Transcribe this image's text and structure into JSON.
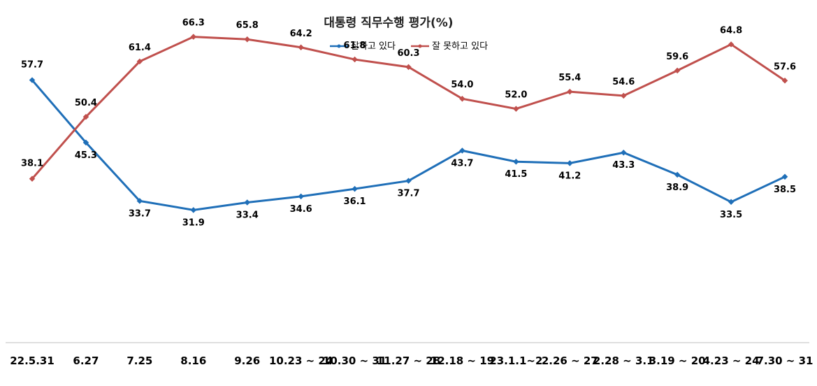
{
  "chart_data": {
    "type": "line",
    "title": "대통령 직무수행 평가(%)",
    "xlabel": "",
    "ylabel": "",
    "categories": [
      "22.5.31",
      "6.27",
      "7.25",
      "8.16",
      "9.26",
      "10.23 ~ 24",
      "10.30 ~ 31",
      "11.27 ~ 28",
      "12.18 ~ 19",
      "23.1.1~2",
      "2.26 ~ 27",
      "2.28 ~ 3.1",
      "3.19 ~ 20",
      "4.23 ~ 24",
      "7.30 ~ 31"
    ],
    "series": [
      {
        "name": "잘하고 있다",
        "color": "#1f6fb8",
        "values": [
          57.7,
          45.3,
          33.7,
          31.9,
          33.4,
          34.6,
          36.1,
          37.7,
          43.7,
          41.5,
          41.2,
          43.3,
          38.9,
          33.5,
          38.5
        ],
        "labels": [
          "57.7",
          "45.3",
          "33.7",
          "31.9",
          "33.4",
          "34.6",
          "36.1",
          "37.7",
          "43.7",
          "41.5",
          "41.2",
          "43.3",
          "38.9",
          "33.5",
          "38.5"
        ]
      },
      {
        "name": "잘 못하고 있다",
        "color": "#c0504d",
        "values": [
          38.1,
          50.4,
          61.4,
          66.3,
          65.8,
          64.2,
          61.8,
          60.3,
          54.0,
          52.0,
          55.4,
          54.6,
          59.6,
          64.8,
          57.6
        ],
        "labels": [
          "38.1",
          "50.4",
          "61.4",
          "66.3",
          "65.8",
          "64.2",
          "61.8",
          "60.3",
          "54.0",
          "52.0",
          "55.4",
          "54.6",
          "59.6",
          "64.8",
          "57.6"
        ]
      }
    ],
    "legend": "top-center",
    "grid": false
  }
}
